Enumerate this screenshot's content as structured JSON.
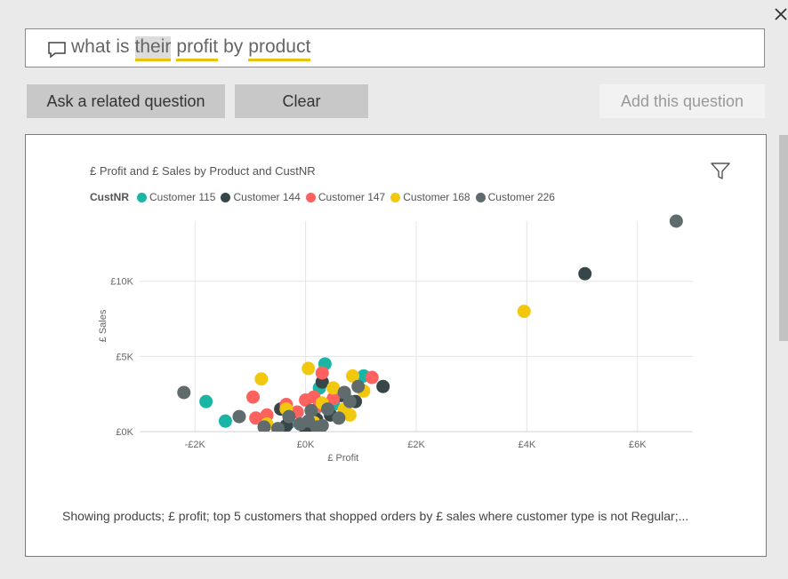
{
  "question": {
    "words": [
      "what",
      "is",
      "their",
      "profit",
      "by",
      "product"
    ],
    "styles": [
      "",
      "",
      "hl",
      "u",
      "",
      "u"
    ]
  },
  "buttons": {
    "ask": "Ask a related question",
    "clear": "Clear",
    "add": "Add this question"
  },
  "chart": {
    "title": "£ Profit and £ Sales by Product and CustNR",
    "legend_title": "CustNR",
    "legend": [
      {
        "name": "Customer 115",
        "color": "#1ab5a4"
      },
      {
        "name": "Customer 144",
        "color": "#374649"
      },
      {
        "name": "Customer 147",
        "color": "#fd625e"
      },
      {
        "name": "Customer 168",
        "color": "#f2c80f"
      },
      {
        "name": "Customer 226",
        "color": "#5f6b6d"
      }
    ],
    "footer": "Showing products; £ profit; top 5 customers that shopped orders by £ sales where customer type is not Regular;..."
  },
  "chart_data": {
    "type": "scatter",
    "title": "£ Profit and £ Sales by Product and CustNR",
    "xlabel": "£ Profit",
    "ylabel": "£ Sales",
    "xlim": [
      -3000,
      7000
    ],
    "ylim": [
      0,
      14000
    ],
    "x_ticks": [
      -2000,
      0,
      2000,
      4000,
      6000
    ],
    "x_tick_labels": [
      "-£2K",
      "£0K",
      "£2K",
      "£4K",
      "£6K"
    ],
    "y_ticks": [
      0,
      5000,
      10000
    ],
    "y_tick_labels": [
      "£0K",
      "£5K",
      "£10K"
    ],
    "grid": true,
    "legend_placement": "top-left",
    "series": [
      {
        "name": "Customer 115",
        "color": "#1ab5a4",
        "points": [
          [
            -1800,
            2000
          ],
          [
            -1450,
            700
          ],
          [
            350,
            4500
          ],
          [
            1050,
            3700
          ],
          [
            700,
            2500
          ],
          [
            250,
            2900
          ],
          [
            150,
            1200
          ],
          [
            -300,
            600
          ],
          [
            500,
            1800
          ],
          [
            100,
            300
          ]
        ]
      },
      {
        "name": "Customer 144",
        "color": "#374649",
        "points": [
          [
            5050,
            10500
          ],
          [
            1400,
            3000
          ],
          [
            300,
            3300
          ],
          [
            -450,
            1500
          ],
          [
            -350,
            400
          ],
          [
            650,
            2400
          ],
          [
            200,
            800
          ],
          [
            900,
            2000
          ],
          [
            450,
            1100
          ],
          [
            0,
            200
          ]
        ]
      },
      {
        "name": "Customer 147",
        "color": "#fd625e",
        "points": [
          [
            -950,
            2300
          ],
          [
            1200,
            3600
          ],
          [
            -900,
            900
          ],
          [
            -700,
            1100
          ],
          [
            -350,
            1800
          ],
          [
            0,
            2100
          ],
          [
            150,
            2300
          ],
          [
            300,
            3900
          ],
          [
            500,
            2200
          ],
          [
            700,
            2600
          ],
          [
            -150,
            1300
          ],
          [
            250,
            1700
          ]
        ]
      },
      {
        "name": "Customer 168",
        "color": "#f2c80f",
        "points": [
          [
            3950,
            8000
          ],
          [
            -800,
            3500
          ],
          [
            50,
            4200
          ],
          [
            850,
            3700
          ],
          [
            1050,
            2700
          ],
          [
            -350,
            1500
          ],
          [
            500,
            2900
          ],
          [
            700,
            1500
          ],
          [
            -700,
            500
          ],
          [
            300,
            1900
          ],
          [
            800,
            1100
          ],
          [
            150,
            600
          ]
        ]
      },
      {
        "name": "Customer 226",
        "color": "#5f6b6d",
        "points": [
          [
            6700,
            14000
          ],
          [
            -2200,
            2600
          ],
          [
            -1200,
            1000
          ],
          [
            -750,
            300
          ],
          [
            950,
            3000
          ],
          [
            800,
            2000
          ],
          [
            -300,
            1000
          ],
          [
            -100,
            500
          ],
          [
            200,
            300
          ],
          [
            400,
            1500
          ],
          [
            600,
            900
          ],
          [
            100,
            1400
          ],
          [
            -500,
            200
          ],
          [
            50,
            700
          ],
          [
            300,
            400
          ],
          [
            700,
            2600
          ]
        ]
      }
    ]
  }
}
